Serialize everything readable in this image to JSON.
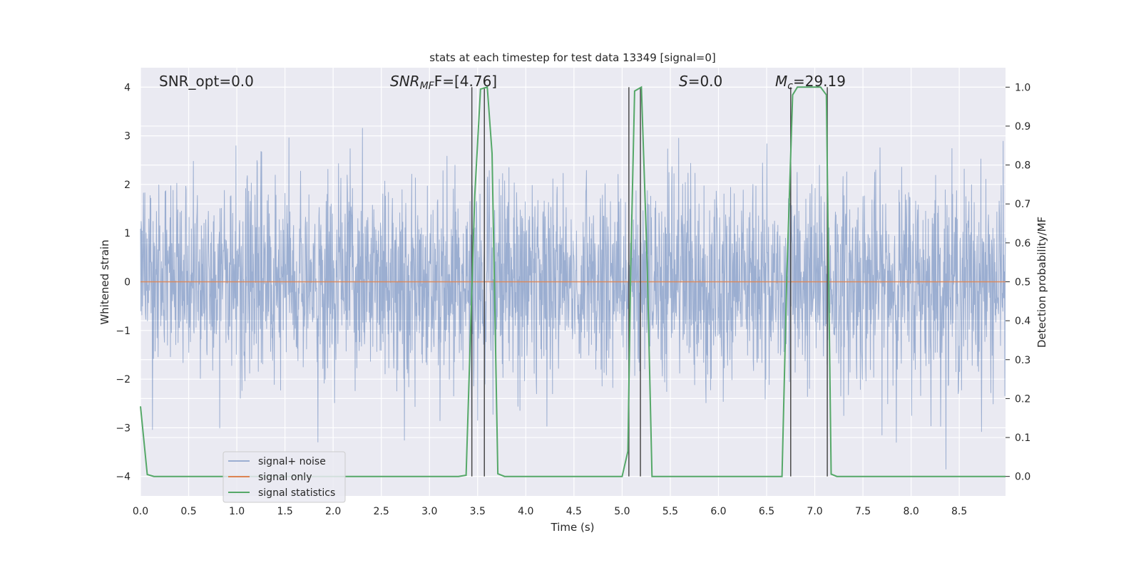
{
  "chart_data": {
    "type": "line",
    "title": "stats at each timestep for test data 13349 [signal=0]",
    "xlabel": "Time (s)",
    "ylabel": "Whitened strain",
    "y2label": "Detection probability/MF",
    "xlim": [
      0,
      8.98
    ],
    "ylim": [
      -4.4,
      4.4
    ],
    "y2lim": [
      -0.05,
      1.05
    ],
    "xticks": [
      0.0,
      0.5,
      1.0,
      1.5,
      2.0,
      2.5,
      3.0,
      3.5,
      4.0,
      4.5,
      5.0,
      5.5,
      6.0,
      6.5,
      7.0,
      7.5,
      8.0,
      8.5
    ],
    "xtick_labels": [
      "0.0",
      "0.5",
      "1.0",
      "1.5",
      "2.0",
      "2.5",
      "3.0",
      "3.5",
      "4.0",
      "4.5",
      "5.0",
      "5.5",
      "6.0",
      "6.5",
      "7.0",
      "7.5",
      "8.0",
      "8.5"
    ],
    "yticks": [
      -4,
      -3,
      -2,
      -1,
      0,
      1,
      2,
      3,
      4
    ],
    "ytick_labels": [
      "−4",
      "−3",
      "−2",
      "−1",
      "0",
      "1",
      "2",
      "3",
      "4"
    ],
    "y2ticks": [
      0.0,
      0.1,
      0.2,
      0.3,
      0.4,
      0.5,
      0.6,
      0.7,
      0.8,
      0.9,
      1.0
    ],
    "y2tick_labels": [
      "0.0",
      "0.1",
      "0.2",
      "0.3",
      "0.4",
      "0.5",
      "0.6",
      "0.7",
      "0.8",
      "0.9",
      "1.0"
    ],
    "grid": true,
    "legend_position": "lower-left",
    "annotations": {
      "snr_opt": "SNR_opt=0.0",
      "snr_mf_main": "SNR",
      "snr_mf_sub": "MF",
      "snr_mf_value": "F=[4.76]",
      "s_main": "S",
      "s_value": "=0.0",
      "mc_main": "M",
      "mc_sub": "c",
      "mc_value": "=29.19"
    },
    "series": [
      {
        "name": "signal+ noise",
        "axis": "left",
        "color": "#4c72b0",
        "note": "whitened strain noise, dense, roughly within ±2.4 with spikes to about ±3.8"
      },
      {
        "name": "signal only",
        "axis": "left",
        "color": "#dd8452",
        "x": [
          0,
          8.98
        ],
        "y": [
          0,
          0
        ]
      },
      {
        "name": "signal statistics",
        "axis": "right",
        "color": "#55a868",
        "x": [
          0.0,
          0.07,
          0.14,
          3.3,
          3.38,
          3.47,
          3.53,
          3.6,
          3.65,
          3.71,
          3.78,
          5.0,
          5.06,
          5.09,
          5.13,
          5.2,
          5.26,
          5.31,
          6.66,
          6.71,
          6.77,
          6.82,
          7.06,
          7.12,
          7.17,
          7.23,
          8.98
        ],
        "y": [
          0.18,
          0.005,
          0.0,
          0.0,
          0.003,
          0.72,
          0.995,
          1.0,
          0.83,
          0.007,
          0.0,
          0.0,
          0.065,
          0.54,
          0.99,
          1.0,
          0.55,
          0.0,
          0.0,
          0.52,
          0.98,
          1.0,
          1.0,
          0.98,
          0.006,
          0.0,
          0.0
        ]
      }
    ],
    "vlines": [
      3.44,
      3.57,
      5.07,
      5.19,
      6.75,
      7.13
    ],
    "vline_color": "#4a4a4a"
  }
}
